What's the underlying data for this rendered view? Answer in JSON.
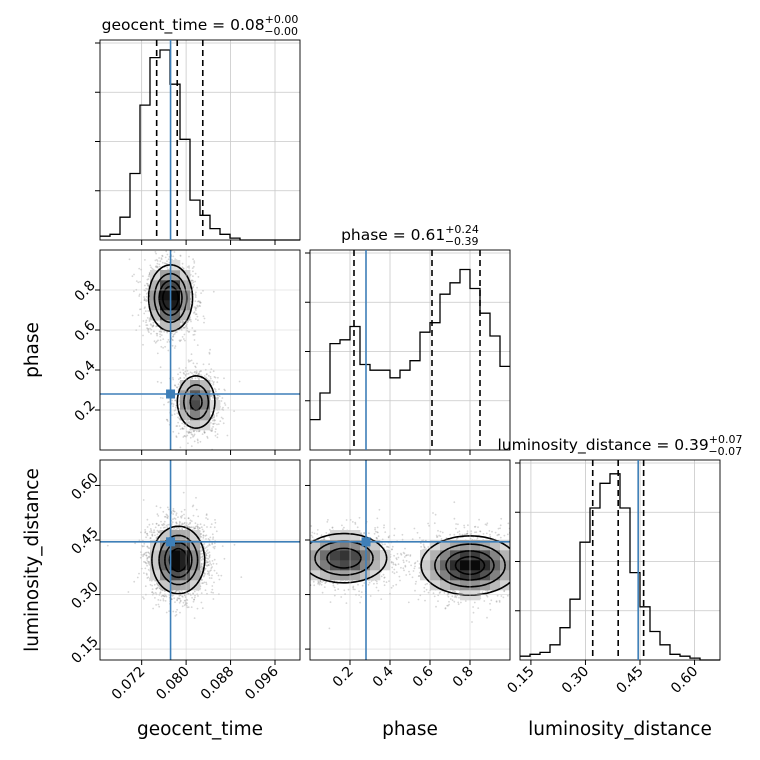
{
  "chart_data": {
    "type": "scatter",
    "subtype": "corner-plot",
    "parameters": [
      "geocent_time",
      "phase",
      "luminosity_distance"
    ],
    "axis_labels": {
      "geocent_time": "geocent_time",
      "phase": "phase",
      "luminosity_distance": "luminosity_distance"
    },
    "titles": [
      {
        "param": "geocent_time",
        "prefix": "geocent_time = 0.08",
        "plus": "+0.00",
        "minus": "−0.00"
      },
      {
        "param": "phase",
        "prefix": "phase = 0.61",
        "plus": "+0.24",
        "minus": "−0.39"
      },
      {
        "param": "luminosity_distance",
        "prefix": "luminosity_distance = 0.39",
        "plus": "+0.07",
        "minus": "−0.07"
      }
    ],
    "ranges": {
      "geocent_time": [
        0.0645,
        0.1005
      ],
      "phase": [
        0.0,
        1.0
      ],
      "luminosity_distance": [
        0.12,
        0.67
      ]
    },
    "ticks": {
      "geocent_time": [
        0.072,
        0.08,
        0.088,
        0.096
      ],
      "phase": [
        0.2,
        0.4,
        0.6,
        0.8
      ],
      "luminosity_distance": [
        0.15,
        0.3,
        0.45,
        0.6
      ]
    },
    "tick_labels": {
      "geocent_time": [
        "0.072",
        "0.080",
        "0.088",
        "0.096"
      ],
      "phase": [
        "0.2",
        "0.4",
        "0.6",
        "0.8"
      ],
      "luminosity_distance": [
        "0.15",
        "0.30",
        "0.45",
        "0.60"
      ]
    },
    "truths": {
      "geocent_time": 0.0772,
      "phase": 0.28,
      "luminosity_distance": 0.445
    },
    "quantiles": {
      "geocent_time": [
        0.0747,
        0.0784,
        0.083
      ],
      "phase": [
        0.22,
        0.61,
        0.85
      ],
      "luminosity_distance": [
        0.32,
        0.39,
        0.46
      ]
    },
    "histograms": {
      "geocent_time": {
        "edges_start": 0.0645,
        "bin_width": 0.0018,
        "counts": [
          0.02,
          0.03,
          0.12,
          0.35,
          0.71,
          0.96,
          1.0,
          0.82,
          0.53,
          0.21,
          0.13,
          0.06,
          0.03,
          0.01,
          0,
          0,
          0,
          0,
          0,
          0
        ]
      },
      "phase": {
        "edges_start": 0.0,
        "bin_width": 0.05,
        "counts": [
          0.16,
          0.3,
          0.56,
          0.58,
          0.65,
          0.45,
          0.42,
          0.42,
          0.38,
          0.42,
          0.47,
          0.62,
          0.67,
          0.82,
          0.88,
          0.95,
          0.85,
          0.72,
          0.6,
          0.44
        ]
      },
      "luminosity_distance": {
        "edges_start": 0.12,
        "bin_width": 0.0275,
        "counts": [
          0.02,
          0.03,
          0.04,
          0.08,
          0.17,
          0.32,
          0.62,
          0.8,
          0.93,
          0.98,
          0.8,
          0.46,
          0.28,
          0.15,
          0.08,
          0.03,
          0.02,
          0.01,
          0,
          0
        ]
      }
    },
    "contours_2d": {
      "phase_vs_geocent_time": {
        "modes": [
          {
            "x": 0.0772,
            "y": 0.76,
            "sx": 0.0019,
            "sy": 0.08,
            "weight": 0.6
          },
          {
            "x": 0.0818,
            "y": 0.24,
            "sx": 0.0018,
            "sy": 0.07,
            "weight": 0.4
          }
        ]
      },
      "luminosity_distance_vs_geocent_time": {
        "modes": [
          {
            "x": 0.0786,
            "y": 0.395,
            "sx": 0.0023,
            "sy": 0.045,
            "weight": 1.0
          }
        ]
      },
      "luminosity_distance_vs_phase": {
        "modes": [
          {
            "x": 0.17,
            "y": 0.4,
            "sx": 0.11,
            "sy": 0.035,
            "weight": 0.45
          },
          {
            "x": 0.8,
            "y": 0.38,
            "sx": 0.12,
            "sy": 0.04,
            "weight": 0.55
          }
        ]
      }
    },
    "colors": {
      "truth": "#3e7fb8",
      "hist": "#000000",
      "grid": "#c8c8c8",
      "points": "#8a8a8a"
    },
    "grid": true
  }
}
